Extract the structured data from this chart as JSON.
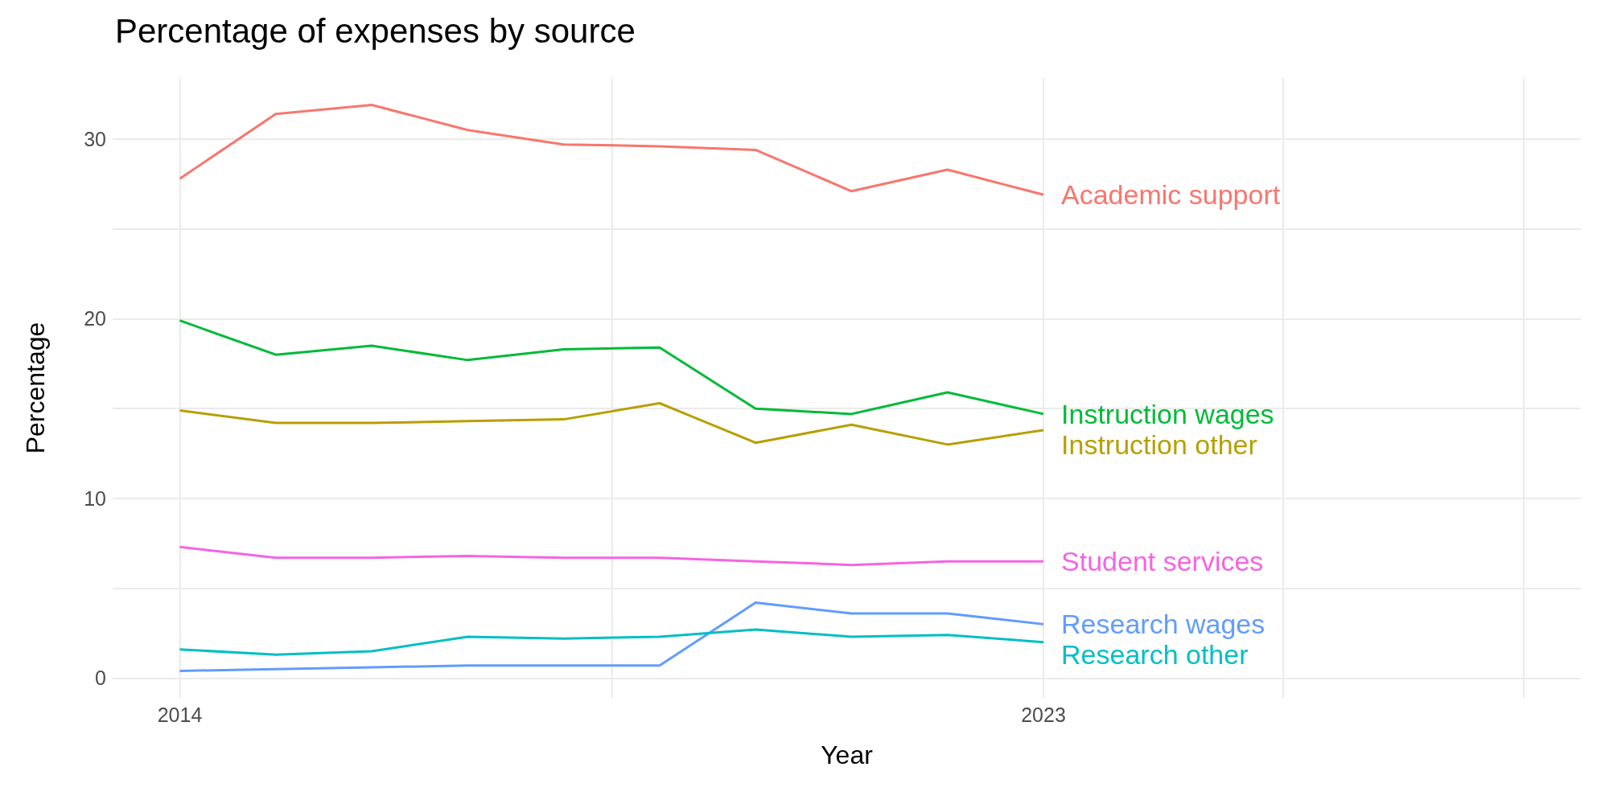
{
  "chart_data": {
    "type": "line",
    "title": "Percentage of expenses by source",
    "xlabel": "Year",
    "ylabel": "Percentage",
    "x": [
      2014,
      2015,
      2016,
      2017,
      2018,
      2019,
      2020,
      2021,
      2022,
      2023
    ],
    "series": [
      {
        "name": "Academic support",
        "color": "#f8766d",
        "values": [
          27.8,
          31.4,
          31.9,
          30.5,
          29.7,
          29.6,
          29.4,
          27.1,
          28.3,
          26.9
        ]
      },
      {
        "name": "Instruction wages",
        "color": "#00ba38",
        "values": [
          19.9,
          18.0,
          18.5,
          17.7,
          18.3,
          18.4,
          15.0,
          14.7,
          15.9,
          14.7
        ]
      },
      {
        "name": "Instruction other",
        "color": "#b79f00",
        "values": [
          14.9,
          14.2,
          14.2,
          14.3,
          14.4,
          15.3,
          13.1,
          14.1,
          13.0,
          13.8
        ]
      },
      {
        "name": "Student services",
        "color": "#f564e3",
        "values": [
          7.3,
          6.7,
          6.7,
          6.8,
          6.7,
          6.7,
          6.5,
          6.3,
          6.5,
          6.5
        ]
      },
      {
        "name": "Research wages",
        "color": "#619cff",
        "values": [
          0.4,
          0.5,
          0.6,
          0.7,
          0.7,
          0.7,
          4.2,
          3.6,
          3.6,
          3.0
        ]
      },
      {
        "name": "Research other",
        "color": "#00bfc4",
        "values": [
          1.6,
          1.3,
          1.5,
          2.3,
          2.2,
          2.3,
          2.7,
          2.3,
          2.4,
          2.0
        ]
      }
    ],
    "xlim": [
      2013.3,
      2028.6
    ],
    "xticks": [
      2014,
      {
        "value": 2018.5,
        "label": null
      },
      2023,
      {
        "value": 2025.5,
        "label": null
      },
      {
        "value": 2028,
        "label": null
      }
    ],
    "ylim": [
      -1.1,
      33.4
    ],
    "yticks": [
      0,
      {
        "value": 5,
        "label": null
      },
      10,
      {
        "value": 15,
        "label": null
      },
      20,
      {
        "value": 25,
        "label": null
      },
      30
    ],
    "grid": true,
    "legend": false,
    "marker": "none",
    "line_style": "solid"
  }
}
